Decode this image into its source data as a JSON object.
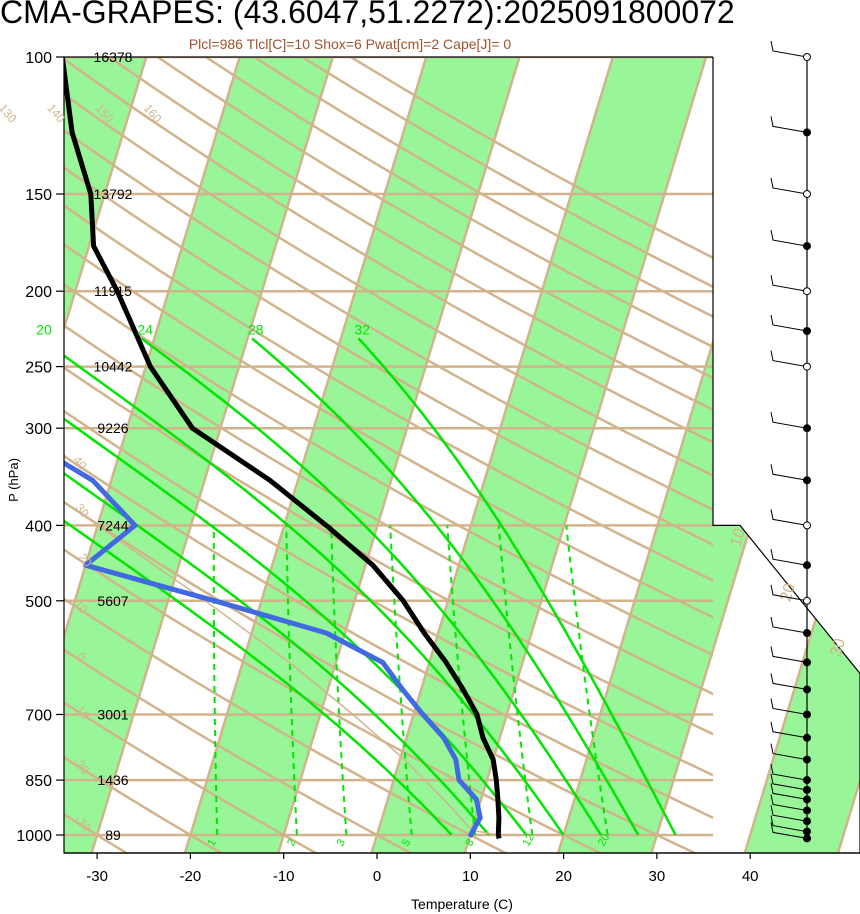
{
  "title": "CMA-GRAPES: (43.6047,51.2272):2025091800072",
  "subtitle": "Plcl=986 Tlcl[C]=10 Shox=6 Pwat[cm]=2 Cape[J]= 0",
  "colors": {
    "temperature": "#000000",
    "dewpoint": "#4169e1",
    "isotherm_band": "#98f598",
    "background_lines": "#d2b48c",
    "moist_adiabat": "#00e600",
    "mixing_ratio": "#00e600",
    "annotation": "#a0522d"
  },
  "chart_data": {
    "type": "line",
    "skew_t": true,
    "xlabel": "Temperature (C)",
    "ylabel": "P (hPa)",
    "x_ticks": [
      -30,
      -20,
      -10,
      0,
      10,
      20,
      30,
      40
    ],
    "x_tick_labels": [
      "-30",
      "-20",
      "-10",
      "0",
      "10",
      "20",
      "30",
      "40"
    ],
    "y_ticks": [
      100,
      150,
      200,
      250,
      300,
      400,
      500,
      700,
      850,
      1000
    ],
    "y_tick_labels": [
      "100",
      "150",
      "200",
      "250",
      "300",
      "400",
      "500",
      "700",
      "850",
      "1000"
    ],
    "heights": [
      {
        "p": 100,
        "label": "16378"
      },
      {
        "p": 150,
        "label": "13792"
      },
      {
        "p": 200,
        "label": "11915"
      },
      {
        "p": 250,
        "label": "10442"
      },
      {
        "p": 300,
        "label": "9226"
      },
      {
        "p": 400,
        "label": "7244"
      },
      {
        "p": 500,
        "label": "5607"
      },
      {
        "p": 700,
        "label": "3001"
      },
      {
        "p": 850,
        "label": "1436"
      },
      {
        "p": 1000,
        "label": "89"
      }
    ],
    "ylim": [
      1050,
      100
    ],
    "temperature": [
      {
        "p": 1010,
        "t": 13.2
      },
      {
        "p": 1000,
        "t": 13.0
      },
      {
        "p": 950,
        "t": 12.5
      },
      {
        "p": 900,
        "t": 11.8
      },
      {
        "p": 850,
        "t": 11.0
      },
      {
        "p": 800,
        "t": 10.0
      },
      {
        "p": 750,
        "t": 8.2
      },
      {
        "p": 700,
        "t": 6.8
      },
      {
        "p": 650,
        "t": 4.5
      },
      {
        "p": 600,
        "t": 1.8
      },
      {
        "p": 550,
        "t": -1.5
      },
      {
        "p": 500,
        "t": -4.8
      },
      {
        "p": 450,
        "t": -9.2
      },
      {
        "p": 400,
        "t": -15.5
      },
      {
        "p": 350,
        "t": -23.0
      },
      {
        "p": 300,
        "t": -33.0
      },
      {
        "p": 250,
        "t": -39.5
      },
      {
        "p": 200,
        "t": -45.5
      },
      {
        "p": 175,
        "t": -49.5
      },
      {
        "p": 150,
        "t": -51.5
      },
      {
        "p": 125,
        "t": -55.5
      },
      {
        "p": 100,
        "t": -59.0
      }
    ],
    "dewpoint": [
      {
        "p": 1005,
        "t": 10.0
      },
      {
        "p": 950,
        "t": 10.5
      },
      {
        "p": 900,
        "t": 9.5
      },
      {
        "p": 850,
        "t": 7.0
      },
      {
        "p": 800,
        "t": 6.0
      },
      {
        "p": 750,
        "t": 4.0
      },
      {
        "p": 700,
        "t": 1.0
      },
      {
        "p": 650,
        "t": -2.0
      },
      {
        "p": 600,
        "t": -5.0
      },
      {
        "p": 550,
        "t": -12.0
      },
      {
        "p": 500,
        "t": -25.0
      },
      {
        "p": 450,
        "t": -40.0
      },
      {
        "p": 400,
        "t": -36.0
      },
      {
        "p": 350,
        "t": -42.0
      },
      {
        "p": 300,
        "t": -53.0
      },
      {
        "p": 275,
        "t": -61.0
      },
      {
        "p": 250,
        "t": -64.5
      },
      {
        "p": 225,
        "t": -66.5
      },
      {
        "p": 200,
        "t": -71.0
      },
      {
        "p": 175,
        "t": -77.0
      },
      {
        "p": 150,
        "t": -86.0
      },
      {
        "p": 125,
        "t": -86.5
      },
      {
        "p": 100,
        "t": -88.5
      }
    ],
    "parcel": [
      {
        "p": 1000,
        "t": 13.0
      },
      {
        "p": 986,
        "t": 10.0
      },
      {
        "p": 900,
        "t": 6.0
      },
      {
        "p": 800,
        "t": 0.5
      },
      {
        "p": 700,
        "t": -6.5
      },
      {
        "p": 600,
        "t": -15.0
      },
      {
        "p": 500,
        "t": -26.0
      },
      {
        "p": 400,
        "t": -40.0
      },
      {
        "p": 300,
        "t": -58.0
      },
      {
        "p": 235,
        "t": -75.0
      }
    ],
    "isotherm_labels": [
      {
        "t": -30,
        "label": "-30"
      },
      {
        "t": -20,
        "label": "-20"
      },
      {
        "t": -10,
        "label": "-10"
      },
      {
        "t": 0,
        "label": "0"
      },
      {
        "t": 10,
        "label": "10"
      },
      {
        "t": 20,
        "label": "20"
      },
      {
        "t": 30,
        "label": "30"
      }
    ],
    "dry_adiabat_labels": [
      {
        "theta": -40,
        "label": "-40"
      },
      {
        "theta": -30,
        "label": "-30"
      },
      {
        "theta": -20,
        "label": "-20"
      },
      {
        "theta": -10,
        "label": "-10"
      },
      {
        "theta": 0,
        "label": "0"
      },
      {
        "theta": 10,
        "label": "10"
      },
      {
        "theta": 20,
        "label": "20"
      },
      {
        "theta": 30,
        "label": "30"
      },
      {
        "theta": 40,
        "label": "40"
      },
      {
        "theta": 50,
        "label": "50"
      },
      {
        "theta": 60,
        "label": "60"
      },
      {
        "theta": 70,
        "label": "70"
      },
      {
        "theta": 80,
        "label": "80"
      },
      {
        "theta": 90,
        "label": "90"
      },
      {
        "theta": 100,
        "label": "100"
      },
      {
        "theta": 110,
        "label": "110"
      },
      {
        "theta": 120,
        "label": "120"
      },
      {
        "theta": 130,
        "label": "130"
      },
      {
        "theta": 140,
        "label": "140"
      },
      {
        "theta": 150,
        "label": "150"
      },
      {
        "theta": 160,
        "label": "160"
      }
    ],
    "moist_adiabat_labels": [
      {
        "t": 8,
        "label": "8"
      },
      {
        "t": 12,
        "label": "12"
      },
      {
        "t": 16,
        "label": "16"
      },
      {
        "t": 20,
        "label": "20"
      },
      {
        "t": 24,
        "label": "24"
      },
      {
        "t": 28,
        "label": "28"
      },
      {
        "t": 32,
        "label": "32"
      }
    ],
    "mixing_ratio_labels": [
      {
        "w": 1,
        "label": "1"
      },
      {
        "w": 2,
        "label": "2"
      },
      {
        "w": 3,
        "label": "3"
      },
      {
        "w": 5,
        "label": "5"
      },
      {
        "w": 8,
        "label": "8"
      },
      {
        "w": 12,
        "label": "12"
      },
      {
        "w": 20,
        "label": "20"
      }
    ],
    "wind_levels": [
      {
        "p": 1010,
        "dir": 300,
        "spd": 5,
        "filled": true
      },
      {
        "p": 990,
        "dir": 300,
        "spd": 8,
        "filled": true
      },
      {
        "p": 960,
        "dir": 300,
        "spd": 8,
        "filled": true
      },
      {
        "p": 930,
        "dir": 300,
        "spd": 10,
        "filled": true
      },
      {
        "p": 900,
        "dir": 300,
        "spd": 10,
        "filled": true
      },
      {
        "p": 875,
        "dir": 300,
        "spd": 12,
        "filled": true
      },
      {
        "p": 850,
        "dir": 300,
        "spd": 12,
        "filled": true
      },
      {
        "p": 800,
        "dir": 295,
        "spd": 15,
        "filled": true
      },
      {
        "p": 750,
        "dir": 295,
        "spd": 15,
        "filled": true
      },
      {
        "p": 700,
        "dir": 290,
        "spd": 18,
        "filled": true
      },
      {
        "p": 650,
        "dir": 285,
        "spd": 20,
        "filled": true
      },
      {
        "p": 600,
        "dir": 280,
        "spd": 20,
        "filled": true
      },
      {
        "p": 550,
        "dir": 280,
        "spd": 25,
        "filled": true
      },
      {
        "p": 500,
        "dir": 275,
        "spd": 25,
        "filled": false
      },
      {
        "p": 450,
        "dir": 275,
        "spd": 30,
        "filled": true
      },
      {
        "p": 400,
        "dir": 270,
        "spd": 35,
        "filled": false
      },
      {
        "p": 350,
        "dir": 270,
        "spd": 35,
        "filled": true
      },
      {
        "p": 300,
        "dir": 270,
        "spd": 40,
        "filled": true
      },
      {
        "p": 250,
        "dir": 265,
        "spd": 40,
        "filled": false
      },
      {
        "p": 225,
        "dir": 265,
        "spd": 40,
        "filled": true
      },
      {
        "p": 200,
        "dir": 260,
        "spd": 45,
        "filled": false
      },
      {
        "p": 175,
        "dir": 260,
        "spd": 30,
        "filled": true
      },
      {
        "p": 150,
        "dir": 255,
        "spd": 25,
        "filled": false
      },
      {
        "p": 125,
        "dir": 255,
        "spd": 20,
        "filled": true
      },
      {
        "p": 100,
        "dir": 250,
        "spd": 15,
        "filled": false
      }
    ]
  }
}
